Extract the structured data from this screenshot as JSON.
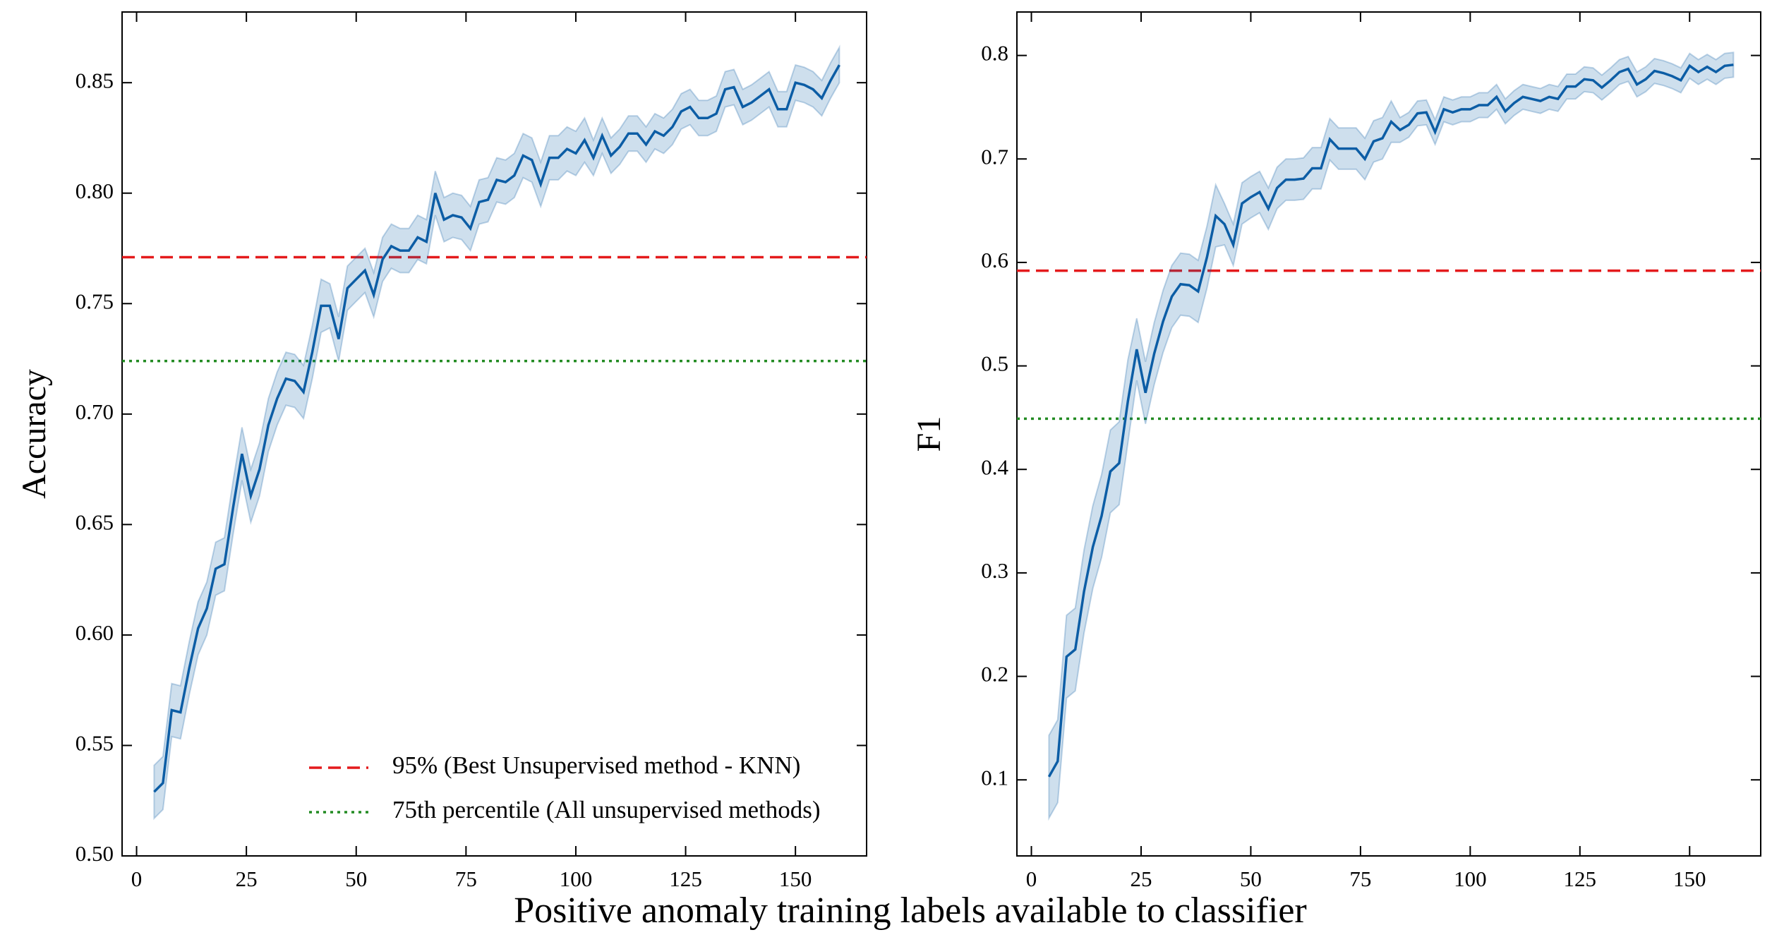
{
  "xlabel": "Positive anomaly training labels available to classifier",
  "chart_data": [
    {
      "type": "line",
      "ylabel": "Accuracy",
      "x": [
        4,
        6,
        8,
        10,
        12,
        14,
        16,
        18,
        20,
        22,
        24,
        26,
        28,
        30,
        32,
        34,
        36,
        38,
        40,
        42,
        44,
        46,
        48,
        50,
        52,
        54,
        56,
        58,
        60,
        62,
        64,
        66,
        68,
        70,
        72,
        74,
        76,
        78,
        80,
        82,
        84,
        86,
        88,
        90,
        92,
        94,
        96,
        98,
        100,
        102,
        104,
        106,
        108,
        110,
        112,
        114,
        116,
        118,
        120,
        122,
        124,
        126,
        128,
        130,
        132,
        134,
        136,
        138,
        140,
        142,
        144,
        146,
        148,
        150,
        152,
        154,
        156,
        158,
        160
      ],
      "series": [
        {
          "color": "#0c5da5",
          "values": [
            0.529,
            0.533,
            0.566,
            0.565,
            0.585,
            0.603,
            0.612,
            0.63,
            0.632,
            0.658,
            0.682,
            0.663,
            0.675,
            0.695,
            0.707,
            0.716,
            0.715,
            0.71,
            0.728,
            0.749,
            0.749,
            0.734,
            0.757,
            0.761,
            0.765,
            0.754,
            0.77,
            0.776,
            0.774,
            0.774,
            0.78,
            0.778,
            0.8,
            0.788,
            0.79,
            0.789,
            0.784,
            0.796,
            0.797,
            0.806,
            0.805,
            0.808,
            0.817,
            0.815,
            0.804,
            0.816,
            0.816,
            0.82,
            0.818,
            0.824,
            0.816,
            0.826,
            0.817,
            0.821,
            0.827,
            0.827,
            0.822,
            0.828,
            0.826,
            0.83,
            0.837,
            0.839,
            0.834,
            0.834,
            0.836,
            0.847,
            0.848,
            0.839,
            0.841,
            0.844,
            0.847,
            0.838,
            0.838,
            0.85,
            0.849,
            0.847,
            0.843,
            0.851,
            0.858
          ],
          "errors": [
            0.012,
            0.012,
            0.012,
            0.012,
            0.012,
            0.012,
            0.012,
            0.012,
            0.012,
            0.012,
            0.012,
            0.012,
            0.012,
            0.012,
            0.012,
            0.012,
            0.012,
            0.012,
            0.012,
            0.012,
            0.01,
            0.01,
            0.01,
            0.01,
            0.01,
            0.01,
            0.01,
            0.01,
            0.01,
            0.01,
            0.01,
            0.01,
            0.01,
            0.01,
            0.01,
            0.01,
            0.01,
            0.01,
            0.01,
            0.01,
            0.01,
            0.01,
            0.01,
            0.01,
            0.01,
            0.01,
            0.01,
            0.01,
            0.01,
            0.01,
            0.008,
            0.008,
            0.008,
            0.008,
            0.008,
            0.008,
            0.008,
            0.008,
            0.008,
            0.008,
            0.008,
            0.008,
            0.008,
            0.008,
            0.008,
            0.008,
            0.008,
            0.008,
            0.008,
            0.008,
            0.008,
            0.008,
            0.008,
            0.008,
            0.008,
            0.008,
            0.008,
            0.008,
            0.008
          ]
        }
      ],
      "hlines": [
        {
          "name": "95% (Best Unsupervised method - KNN)",
          "value": 0.771,
          "color": "#e41a1c",
          "style": "dashed"
        },
        {
          "name": "75th percentile (All unsupervised methods)",
          "value": 0.724,
          "color": "#228b22",
          "style": "dotted"
        }
      ],
      "legend": "lower right",
      "xlim": [
        -3.3,
        166.2
      ],
      "xticks": [
        0,
        25,
        50,
        75,
        100,
        125,
        150
      ],
      "ylim": [
        0.5,
        0.882
      ],
      "yticks": [
        {
          "value": 0.5,
          "label": "0.50"
        },
        0.55,
        {
          "value": 0.6,
          "label": "0.60"
        },
        0.65,
        {
          "value": 0.7,
          "label": "0.70"
        },
        0.75,
        {
          "value": 0.8,
          "label": "0.80"
        },
        0.85
      ]
    },
    {
      "type": "line",
      "ylabel": "F1",
      "x": [
        4,
        6,
        8,
        10,
        12,
        14,
        16,
        18,
        20,
        22,
        24,
        26,
        28,
        30,
        32,
        34,
        36,
        38,
        40,
        42,
        44,
        46,
        48,
        50,
        52,
        54,
        56,
        58,
        60,
        62,
        64,
        66,
        68,
        70,
        72,
        74,
        76,
        78,
        80,
        82,
        84,
        86,
        88,
        90,
        92,
        94,
        96,
        98,
        100,
        102,
        104,
        106,
        108,
        110,
        112,
        114,
        116,
        118,
        120,
        122,
        124,
        126,
        128,
        130,
        132,
        134,
        136,
        138,
        140,
        142,
        144,
        146,
        148,
        150,
        152,
        154,
        156,
        158,
        160
      ],
      "series": [
        {
          "color": "#0c5da5",
          "values": [
            0.103,
            0.118,
            0.219,
            0.226,
            0.282,
            0.325,
            0.355,
            0.398,
            0.406,
            0.466,
            0.516,
            0.474,
            0.512,
            0.543,
            0.567,
            0.579,
            0.578,
            0.572,
            0.605,
            0.645,
            0.637,
            0.617,
            0.657,
            0.663,
            0.668,
            0.652,
            0.672,
            0.68,
            0.68,
            0.681,
            0.691,
            0.691,
            0.719,
            0.71,
            0.71,
            0.71,
            0.7,
            0.717,
            0.72,
            0.736,
            0.728,
            0.733,
            0.744,
            0.745,
            0.726,
            0.748,
            0.745,
            0.748,
            0.748,
            0.752,
            0.752,
            0.76,
            0.746,
            0.754,
            0.76,
            0.758,
            0.756,
            0.76,
            0.758,
            0.77,
            0.77,
            0.777,
            0.776,
            0.769,
            0.776,
            0.784,
            0.787,
            0.772,
            0.777,
            0.785,
            0.783,
            0.78,
            0.776,
            0.79,
            0.784,
            0.789,
            0.784,
            0.79,
            0.791
          ],
          "errors": [
            0.04,
            0.04,
            0.04,
            0.04,
            0.04,
            0.04,
            0.04,
            0.04,
            0.04,
            0.04,
            0.03,
            0.03,
            0.03,
            0.03,
            0.03,
            0.03,
            0.03,
            0.03,
            0.03,
            0.03,
            0.02,
            0.02,
            0.02,
            0.02,
            0.02,
            0.02,
            0.02,
            0.02,
            0.02,
            0.02,
            0.02,
            0.02,
            0.02,
            0.02,
            0.02,
            0.02,
            0.02,
            0.02,
            0.02,
            0.02,
            0.012,
            0.012,
            0.012,
            0.012,
            0.012,
            0.012,
            0.012,
            0.012,
            0.012,
            0.012,
            0.012,
            0.012,
            0.012,
            0.012,
            0.012,
            0.012,
            0.012,
            0.012,
            0.012,
            0.012,
            0.012,
            0.012,
            0.012,
            0.012,
            0.012,
            0.012,
            0.012,
            0.012,
            0.012,
            0.012,
            0.012,
            0.012,
            0.012,
            0.012,
            0.012,
            0.012,
            0.012,
            0.012,
            0.012
          ]
        }
      ],
      "hlines": [
        {
          "value": 0.592,
          "color": "#e41a1c",
          "style": "dashed"
        },
        {
          "value": 0.449,
          "color": "#228b22",
          "style": "dotted"
        }
      ],
      "xlim": [
        -3.3,
        166.2
      ],
      "xticks": [
        0,
        25,
        50,
        75,
        100,
        125,
        150
      ],
      "ylim": [
        0.0265,
        0.842
      ],
      "yticks": [
        0.1,
        0.2,
        0.3,
        0.4,
        0.5,
        0.6,
        0.7,
        0.8
      ]
    }
  ]
}
